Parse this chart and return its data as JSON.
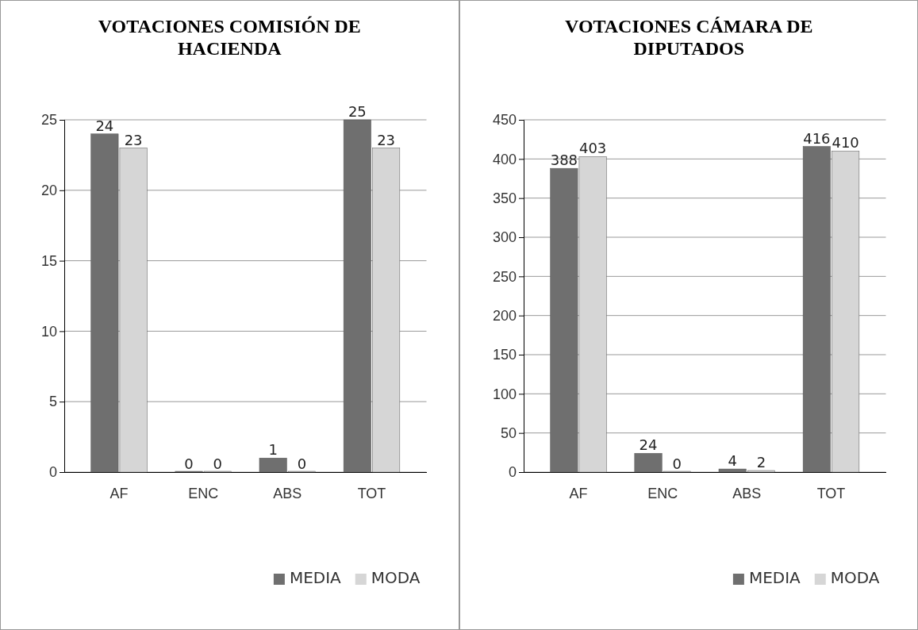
{
  "chart_data": [
    {
      "type": "bar",
      "title": "VOTACIONES COMISIÓN DE HACIENDA",
      "categories": [
        "AF",
        "ENC",
        "ABS",
        "TOT"
      ],
      "series": [
        {
          "name": "MEDIA",
          "color": "#6f6f6f",
          "values": [
            24,
            0,
            1,
            25
          ]
        },
        {
          "name": "MODA",
          "color": "#d6d6d6",
          "values": [
            23,
            0,
            0,
            23
          ]
        }
      ],
      "ylim": [
        0,
        25
      ],
      "yticks": [
        0,
        5,
        10,
        15,
        20,
        25
      ],
      "grid": "y",
      "legend": "bottom right",
      "data_labels": true
    },
    {
      "type": "bar",
      "title": "VOTACIONES CÁMARA DE DIPUTADOS",
      "categories": [
        "AF",
        "ENC",
        "ABS",
        "TOT"
      ],
      "series": [
        {
          "name": "MEDIA",
          "color": "#6f6f6f",
          "values": [
            388,
            24,
            4,
            416
          ]
        },
        {
          "name": "MODA",
          "color": "#d6d6d6",
          "values": [
            403,
            0,
            2,
            410
          ]
        }
      ],
      "ylim": [
        0,
        450
      ],
      "yticks": [
        0,
        50,
        100,
        150,
        200,
        250,
        300,
        350,
        400,
        450
      ],
      "grid": "y",
      "legend": "bottom right",
      "data_labels": true
    }
  ]
}
